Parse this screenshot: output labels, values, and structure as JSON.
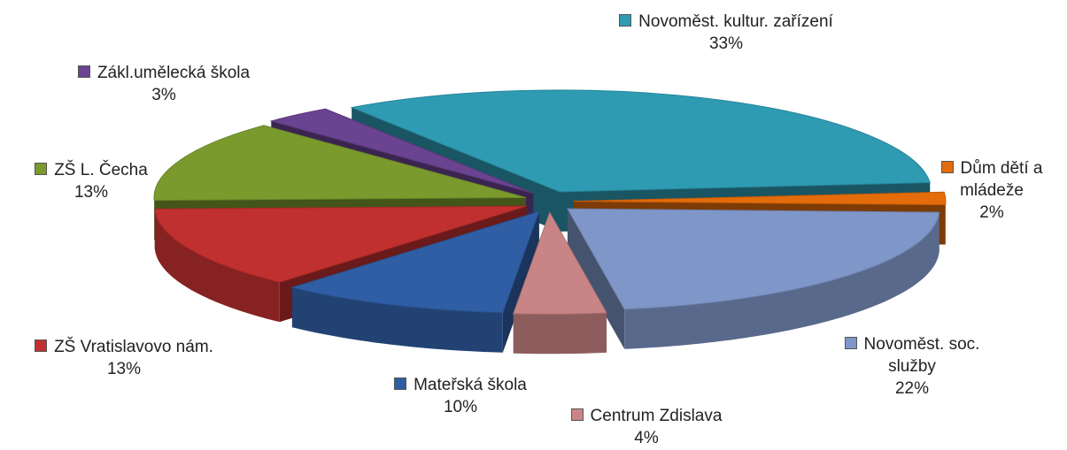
{
  "chart_data": {
    "type": "pie",
    "categories": [
      "Novoměst. kultur. zařízení",
      "Dům dětí a mládeže",
      "Novoměst. soc. služby",
      "Centrum Zdislava",
      "Mateřská škola",
      "ZŠ Vratislavovo nám.",
      "ZŠ L. Čecha",
      "Zákl.umělecká škola"
    ],
    "values": [
      33,
      2,
      22,
      4,
      10,
      13,
      13,
      3
    ],
    "value_labels": [
      "33%",
      "2%",
      "22%",
      "4%",
      "10%",
      "13%",
      "13%",
      "3%"
    ],
    "colors": [
      "#2e9bb3",
      "#e46c0a",
      "#7f96c8",
      "#c98585",
      "#2f5ea5",
      "#c0302f",
      "#7a9a2e",
      "#6a4391"
    ]
  }
}
